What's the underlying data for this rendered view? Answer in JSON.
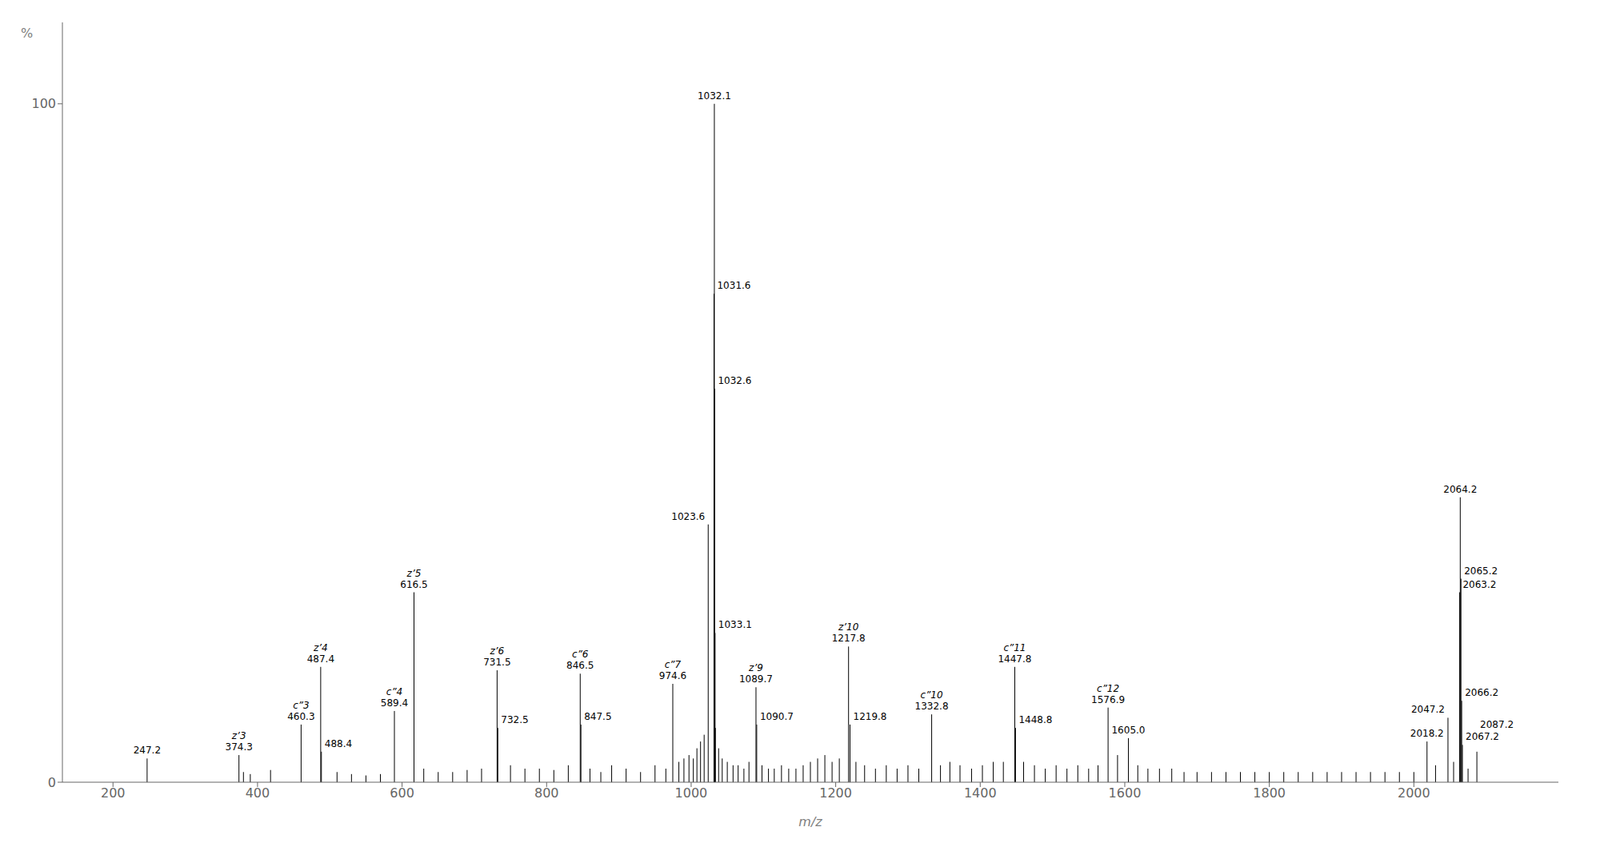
{
  "chart_data": {
    "type": "stem",
    "xlabel": "m/z",
    "ylabel": "%",
    "color": "#000000",
    "grid": false,
    "xlim": [
      130,
      2200
    ],
    "ylim": [
      0,
      112
    ],
    "xticks": [
      200,
      400,
      600,
      800,
      1000,
      1200,
      1400,
      1600,
      1800,
      2000
    ],
    "yticks": [
      0,
      100
    ],
    "x": [
      247.2,
      374.3,
      380.5,
      390.0,
      418.0,
      460.3,
      487.4,
      488.4,
      510.0,
      530.0,
      550.0,
      570.0,
      589.4,
      616.5,
      630.0,
      650.0,
      670.0,
      690.0,
      710.0,
      731.5,
      732.5,
      750.0,
      770.0,
      790.0,
      810.0,
      830.0,
      846.5,
      847.5,
      860.0,
      875.0,
      890.0,
      910.0,
      930.0,
      950.0,
      965.0,
      974.6,
      983.0,
      990.0,
      997.0,
      1003.0,
      1008.0,
      1013.0,
      1018.0,
      1023.6,
      1031.6,
      1032.1,
      1032.6,
      1033.1,
      1033.6,
      1038.0,
      1043.0,
      1050.0,
      1058.0,
      1065.0,
      1073.0,
      1080.0,
      1089.7,
      1090.7,
      1098.0,
      1107.0,
      1115.0,
      1125.0,
      1135.0,
      1145.0,
      1155.0,
      1165.0,
      1175.0,
      1185.0,
      1195.0,
      1205.0,
      1217.8,
      1219.8,
      1228.0,
      1240.0,
      1255.0,
      1270.0,
      1285.0,
      1300.0,
      1315.0,
      1332.8,
      1345.0,
      1358.0,
      1372.0,
      1388.0,
      1403.0,
      1418.0,
      1432.0,
      1447.8,
      1448.8,
      1460.0,
      1475.0,
      1490.0,
      1505.0,
      1520.0,
      1535.0,
      1550.0,
      1563.0,
      1576.9,
      1590.0,
      1605.0,
      1618.0,
      1632.0,
      1648.0,
      1665.0,
      1682.0,
      1700.0,
      1720.0,
      1740.0,
      1760.0,
      1780.0,
      1800.0,
      1820.0,
      1840.0,
      1860.0,
      1880.0,
      1900.0,
      1920.0,
      1940.0,
      1960.0,
      1980.0,
      2000.0,
      2018.2,
      2030.0,
      2047.2,
      2055.0,
      2063.2,
      2064.2,
      2065.2,
      2066.2,
      2067.2,
      2075.0,
      2087.2
    ],
    "values": [
      3.5,
      4.0,
      1.5,
      1.2,
      1.8,
      8.5,
      17.0,
      4.5,
      1.5,
      1.2,
      1.0,
      1.2,
      10.5,
      28.0,
      2.0,
      1.5,
      1.5,
      1.8,
      2.0,
      16.5,
      8.0,
      2.5,
      2.0,
      2.0,
      1.8,
      2.5,
      16.0,
      8.5,
      2.0,
      1.5,
      2.5,
      2.0,
      1.5,
      2.5,
      2.0,
      14.5,
      3.0,
      3.5,
      4.0,
      3.5,
      5.0,
      6.0,
      7.0,
      38.0,
      72.0,
      100.0,
      58.0,
      22.0,
      8.0,
      5.0,
      3.5,
      3.0,
      2.5,
      2.5,
      2.0,
      3.0,
      14.0,
      8.5,
      2.5,
      2.0,
      2.0,
      2.5,
      2.0,
      2.0,
      2.5,
      3.0,
      3.5,
      4.0,
      3.0,
      3.5,
      20.0,
      8.5,
      3.0,
      2.5,
      2.0,
      2.5,
      2.0,
      2.5,
      2.0,
      10.0,
      2.5,
      3.0,
      2.5,
      2.0,
      2.5,
      3.0,
      3.0,
      17.0,
      8.0,
      3.0,
      2.5,
      2.0,
      2.5,
      2.0,
      2.5,
      2.0,
      2.5,
      11.0,
      4.0,
      6.5,
      2.5,
      2.0,
      2.0,
      2.0,
      1.5,
      1.5,
      1.5,
      1.5,
      1.5,
      1.5,
      1.5,
      1.5,
      1.5,
      1.5,
      1.5,
      1.5,
      1.5,
      1.5,
      1.5,
      1.5,
      1.5,
      6.0,
      2.5,
      9.5,
      3.0,
      28.0,
      42.0,
      30.0,
      12.0,
      5.5,
      2.0,
      4.5
    ],
    "annotations": [
      {
        "x": 247.2,
        "y": 3.5,
        "text": "247.2"
      },
      {
        "x": 374.3,
        "y": 4.0,
        "text": "374.3",
        "ion_label": "z’3"
      },
      {
        "x": 460.3,
        "y": 8.5,
        "text": "460.3",
        "ion_label": "c”3"
      },
      {
        "x": 487.4,
        "y": 17.0,
        "text": "487.4",
        "ion_label": "z’4"
      },
      {
        "x": 488.4,
        "y": 4.5,
        "text": "488.4"
      },
      {
        "x": 589.4,
        "y": 10.5,
        "text": "589.4",
        "ion_label": "c”4"
      },
      {
        "x": 616.5,
        "y": 28.0,
        "text": "616.5",
        "ion_label": "z’5"
      },
      {
        "x": 731.5,
        "y": 16.5,
        "text": "731.5",
        "ion_label": "z’6"
      },
      {
        "x": 732.5,
        "y": 8.0,
        "text": "732.5"
      },
      {
        "x": 846.5,
        "y": 16.0,
        "text": "846.5",
        "ion_label": "c”6"
      },
      {
        "x": 847.5,
        "y": 8.5,
        "text": "847.5"
      },
      {
        "x": 974.6,
        "y": 14.5,
        "text": "974.6",
        "ion_label": "c”7"
      },
      {
        "x": 1023.6,
        "y": 38.0,
        "text": "1023.6"
      },
      {
        "x": 1031.6,
        "y": 72.0,
        "text": "1031.6"
      },
      {
        "x": 1032.1,
        "y": 100.0,
        "text": "1032.1"
      },
      {
        "x": 1032.6,
        "y": 58.0,
        "text": "1032.6"
      },
      {
        "x": 1033.1,
        "y": 22.0,
        "text": "1033.1"
      },
      {
        "x": 1089.7,
        "y": 14.0,
        "text": "1089.7",
        "ion_label": "z’9"
      },
      {
        "x": 1090.7,
        "y": 8.5,
        "text": "1090.7"
      },
      {
        "x": 1217.8,
        "y": 20.0,
        "text": "1217.8",
        "ion_label": "z’10"
      },
      {
        "x": 1219.8,
        "y": 8.5,
        "text": "1219.8"
      },
      {
        "x": 1332.8,
        "y": 10.0,
        "text": "1332.8",
        "ion_label": "c”10"
      },
      {
        "x": 1447.8,
        "y": 17.0,
        "text": "1447.8",
        "ion_label": "c”11"
      },
      {
        "x": 1448.8,
        "y": 8.0,
        "text": "1448.8"
      },
      {
        "x": 1576.9,
        "y": 11.0,
        "text": "1576.9",
        "ion_label": "c”12"
      },
      {
        "x": 1605.0,
        "y": 6.5,
        "text": "1605.0"
      },
      {
        "x": 2018.2,
        "y": 6.0,
        "text": "2018.2"
      },
      {
        "x": 2047.2,
        "y": 9.5,
        "text": "2047.2"
      },
      {
        "x": 2063.2,
        "y": 28.0,
        "text": "2063.2"
      },
      {
        "x": 2064.2,
        "y": 42.0,
        "text": "2064.2"
      },
      {
        "x": 2065.2,
        "y": 30.0,
        "text": "2065.2"
      },
      {
        "x": 2066.2,
        "y": 12.0,
        "text": "2066.2"
      },
      {
        "x": 2067.2,
        "y": 5.5,
        "text": "2067.2"
      },
      {
        "x": 2087.2,
        "y": 4.5,
        "text": "2087.2"
      }
    ]
  }
}
